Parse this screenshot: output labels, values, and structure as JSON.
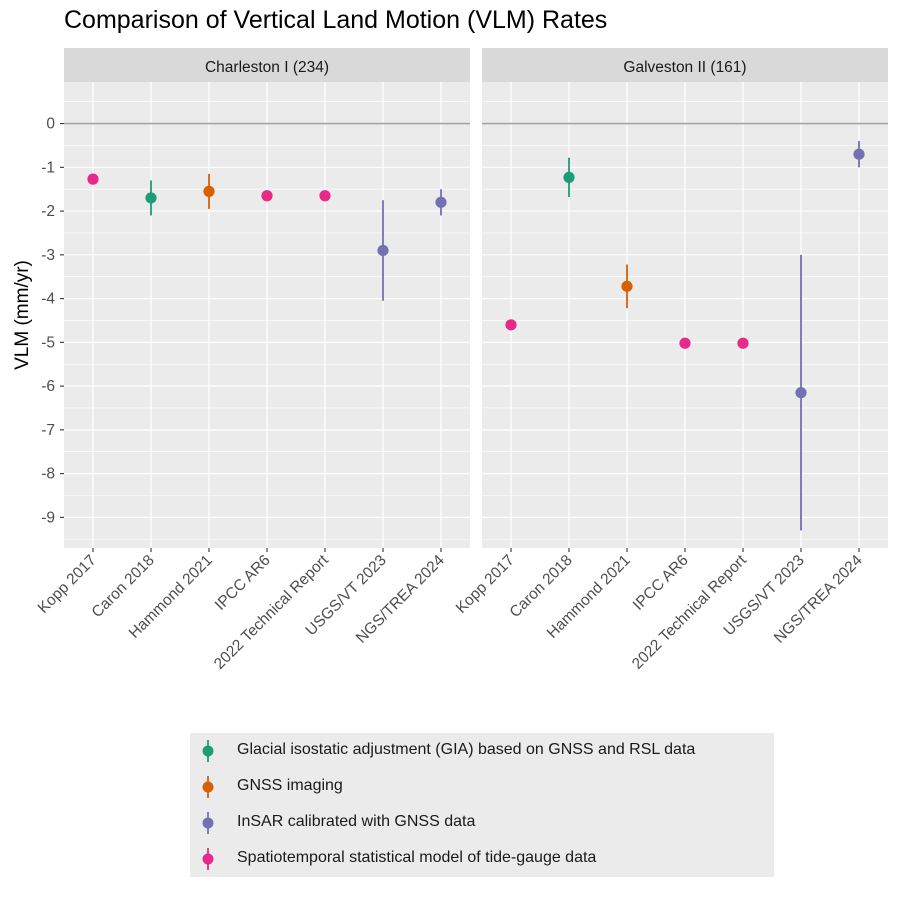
{
  "chart_data": {
    "type": "scatter",
    "title": "Comparison of Vertical Land Motion (VLM) Rates",
    "ylabel": "VLM (mm/yr)",
    "xlabel": "",
    "ylim": [
      -9.7,
      0.95
    ],
    "y_ticks": [
      0,
      -1,
      -2,
      -3,
      -4,
      -5,
      -6,
      -7,
      -8,
      -9
    ],
    "categories": [
      "Kopp 2017",
      "Caron 2018",
      "Hammond 2021",
      "IPCC AR6",
      "2022 Technical Report",
      "USGS/VT 2023",
      "NGS/TREA 2024"
    ],
    "reference_line_y": 0,
    "grid": true,
    "legend_position": "bottom",
    "methods": [
      {
        "name": "Glacial isostatic adjustment (GIA) based on GNSS and RSL data",
        "color": "#1b9e77"
      },
      {
        "name": "GNSS imaging",
        "color": "#d95f02"
      },
      {
        "name": "InSAR calibrated with GNSS data",
        "color": "#7570b3"
      },
      {
        "name": "Spatiotemporal statistical model of tide-gauge data",
        "color": "#e7298a"
      }
    ],
    "panels": [
      {
        "title": "Charleston I (234)",
        "points": [
          {
            "category": "Kopp 2017",
            "method": 3,
            "y": -1.27,
            "ymin": null,
            "ymax": null
          },
          {
            "category": "Caron 2018",
            "method": 0,
            "y": -1.7,
            "ymin": -2.1,
            "ymax": -1.3
          },
          {
            "category": "Hammond 2021",
            "method": 1,
            "y": -1.55,
            "ymin": -1.95,
            "ymax": -1.15
          },
          {
            "category": "IPCC AR6",
            "method": 3,
            "y": -1.65,
            "ymin": null,
            "ymax": null
          },
          {
            "category": "2022 Technical Report",
            "method": 3,
            "y": -1.65,
            "ymin": null,
            "ymax": null
          },
          {
            "category": "USGS/VT 2023",
            "method": 2,
            "y": -2.9,
            "ymin": -4.05,
            "ymax": -1.75
          },
          {
            "category": "NGS/TREA 2024",
            "method": 2,
            "y": -1.8,
            "ymin": -2.1,
            "ymax": -1.5
          }
        ]
      },
      {
        "title": "Galveston II (161)",
        "points": [
          {
            "category": "Kopp 2017",
            "method": 3,
            "y": -4.6,
            "ymin": null,
            "ymax": null
          },
          {
            "category": "Caron 2018",
            "method": 0,
            "y": -1.23,
            "ymin": -1.68,
            "ymax": -0.78
          },
          {
            "category": "Hammond 2021",
            "method": 1,
            "y": -3.72,
            "ymin": -4.22,
            "ymax": -3.22
          },
          {
            "category": "IPCC AR6",
            "method": 3,
            "y": -5.02,
            "ymin": null,
            "ymax": null
          },
          {
            "category": "2022 Technical Report",
            "method": 3,
            "y": -5.02,
            "ymin": null,
            "ymax": null
          },
          {
            "category": "USGS/VT 2023",
            "method": 2,
            "y": -6.15,
            "ymin": -9.3,
            "ymax": -3.0
          },
          {
            "category": "NGS/TREA 2024",
            "method": 2,
            "y": -0.7,
            "ymin": -1.0,
            "ymax": -0.4
          }
        ]
      }
    ]
  }
}
